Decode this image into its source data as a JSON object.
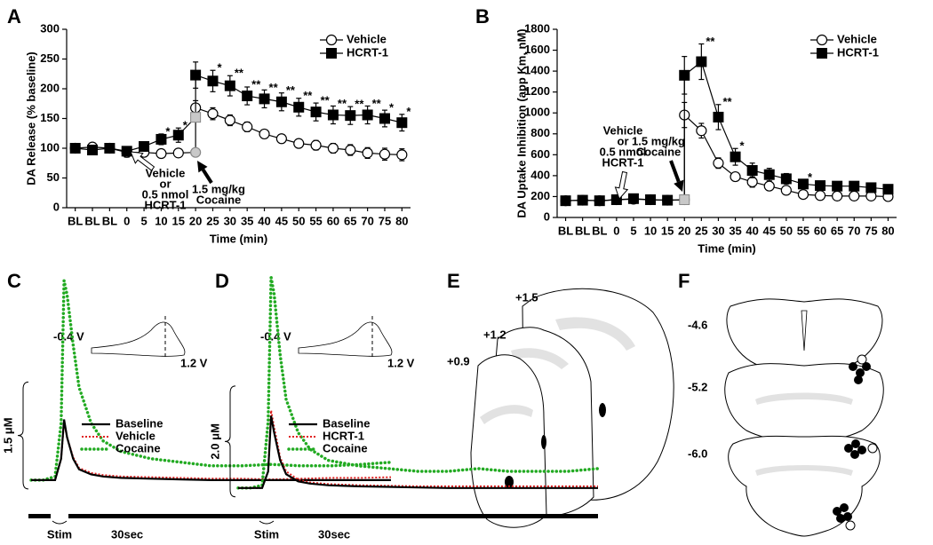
{
  "chart_data": [
    {
      "type": "line",
      "label": "A",
      "xlabel": "Time (min)",
      "ylabel": "DA Release (% baseline)",
      "categories": [
        "BL",
        "BL",
        "BL",
        "0",
        "5",
        "10",
        "15",
        "20",
        null,
        "25",
        "30",
        "35",
        "40",
        "45",
        "50",
        "55",
        "60",
        "65",
        "70",
        "75",
        "80"
      ],
      "ylim": [
        0,
        300
      ],
      "yticks": [
        0,
        50,
        100,
        150,
        200,
        250,
        300
      ],
      "series": [
        {
          "name": "Vehicle",
          "marker": "circle",
          "color": "#000000",
          "values": [
            100,
            102,
            100,
            93,
            93,
            91,
            92,
            93,
            168,
            158,
            147,
            136,
            124,
            116,
            108,
            105,
            100,
            97,
            92,
            90,
            89
          ],
          "errors": [
            3,
            3,
            3,
            8,
            6,
            6,
            6,
            4,
            12,
            10,
            9,
            8,
            7,
            7,
            7,
            8,
            8,
            9,
            9,
            10,
            10
          ]
        },
        {
          "name": "HCRT-1",
          "marker": "square",
          "color": "#000000",
          "values": [
            100,
            97,
            100,
            95,
            103,
            115,
            122,
            152,
            223,
            213,
            205,
            188,
            183,
            178,
            169,
            161,
            156,
            155,
            156,
            150,
            143
          ],
          "errors": [
            3,
            3,
            3,
            7,
            8,
            9,
            12,
            5,
            22,
            18,
            17,
            15,
            15,
            15,
            15,
            15,
            15,
            15,
            15,
            14,
            14
          ],
          "significance": [
            null,
            null,
            null,
            null,
            null,
            "*",
            "*",
            null,
            null,
            "*",
            "**",
            "**",
            "**",
            "**",
            "**",
            "**",
            "**",
            "**",
            "**",
            "*",
            "*"
          ]
        }
      ],
      "annotations": [
        {
          "lines": [
            "Vehicle",
            "or",
            "0.5 nmol",
            "HCRT-1"
          ]
        },
        {
          "lines": [
            "1.5 mg/kg",
            "Cocaine"
          ]
        }
      ]
    },
    {
      "type": "line",
      "label": "B",
      "xlabel": "Time (min)",
      "ylabel": "DA Uptake Inhibition (app Km, nM)",
      "categories": [
        "BL",
        "BL",
        "BL",
        "0",
        "5",
        "10",
        "15",
        "20",
        null,
        "25",
        "30",
        "35",
        "40",
        "45",
        "50",
        "55",
        "60",
        "65",
        "70",
        "75",
        "80"
      ],
      "ylim": [
        0,
        1800
      ],
      "yticks": [
        0,
        200,
        400,
        600,
        800,
        1000,
        1200,
        1400,
        1600,
        1800
      ],
      "series": [
        {
          "name": "Vehicle",
          "marker": "circle",
          "color": "#000000",
          "values": [
            160,
            165,
            160,
            170,
            175,
            170,
            165,
            170,
            980,
            830,
            520,
            390,
            340,
            300,
            260,
            220,
            210,
            205,
            205,
            205,
            200
          ],
          "errors": [
            20,
            20,
            20,
            20,
            20,
            20,
            20,
            10,
            120,
            70,
            50,
            40,
            50,
            40,
            40,
            30,
            30,
            30,
            30,
            30,
            30
          ]
        },
        {
          "name": "HCRT-1",
          "marker": "square",
          "color": "#000000",
          "values": [
            160,
            165,
            160,
            170,
            180,
            170,
            165,
            170,
            1360,
            1490,
            960,
            580,
            450,
            410,
            370,
            320,
            305,
            300,
            300,
            285,
            270
          ],
          "errors": [
            20,
            20,
            20,
            20,
            20,
            20,
            20,
            10,
            180,
            170,
            120,
            80,
            70,
            60,
            50,
            40,
            40,
            40,
            40,
            40,
            40
          ],
          "significance": [
            null,
            null,
            null,
            null,
            null,
            null,
            null,
            null,
            null,
            "**",
            "**",
            "*",
            null,
            null,
            null,
            "*",
            null,
            null,
            null,
            null,
            null
          ]
        }
      ],
      "annotations": [
        {
          "lines": [
            "Vehicle",
            "or",
            "0.5 nmol",
            "HCRT-1"
          ]
        },
        {
          "lines": [
            "1.5 mg/kg",
            "Cocaine"
          ]
        }
      ]
    },
    {
      "type": "trace",
      "label": "C",
      "stim_label": "Stim",
      "time_label": "30sec",
      "scale_bar": {
        "value": 1.5,
        "label": "1.5 μM"
      },
      "inset_labels": [
        "-0.4 V",
        "1.2 V"
      ],
      "xlim": [
        0,
        60
      ],
      "ylim": [
        -0.5,
        3.0
      ],
      "x": [
        0,
        2,
        4,
        5,
        5.5,
        6,
        7,
        8,
        10,
        12,
        15,
        20,
        25,
        30,
        35,
        40,
        45,
        50,
        55,
        60
      ],
      "series": [
        {
          "name": "Baseline",
          "color": "#000000",
          "style": "solid",
          "values": [
            0,
            0,
            0,
            0.3,
            0.85,
            0.6,
            0.3,
            0.15,
            0.08,
            0.05,
            0.03,
            0.02,
            0.01,
            0,
            0,
            0,
            0,
            0,
            0,
            0
          ]
        },
        {
          "name": "Vehicle",
          "color": "#e02020",
          "style": "dotted",
          "values": [
            0,
            0,
            0,
            0.3,
            0.82,
            0.6,
            0.32,
            0.17,
            0.1,
            0.07,
            0.05,
            0.04,
            0.03,
            0.02,
            0.02,
            0.01,
            0.02,
            0.03,
            0.03,
            0.04
          ]
        },
        {
          "name": "Cocaine",
          "color": "#22aa22",
          "style": "circles",
          "values": [
            0,
            0,
            0.05,
            0.8,
            2.8,
            2.6,
            1.9,
            1.3,
            0.8,
            0.55,
            0.4,
            0.3,
            0.25,
            0.2,
            0.2,
            0.22,
            0.2,
            0.2,
            0.22,
            0.25
          ]
        }
      ]
    },
    {
      "type": "trace",
      "label": "D",
      "stim_label": "Stim",
      "time_label": "30sec",
      "scale_bar": {
        "value": 2.0,
        "label": "2.0 μM"
      },
      "inset_labels": [
        "-0.4 V",
        "1.2 V"
      ],
      "xlim": [
        0,
        60
      ],
      "ylim": [
        -0.5,
        4.0
      ],
      "x": [
        0,
        2,
        4,
        5,
        5.5,
        6,
        7,
        8,
        10,
        12,
        15,
        20,
        25,
        30,
        35,
        40,
        45,
        50,
        55,
        60
      ],
      "series": [
        {
          "name": "Baseline",
          "color": "#000000",
          "style": "solid",
          "values": [
            0,
            0,
            0,
            0.3,
            1.3,
            1.0,
            0.5,
            0.25,
            0.12,
            0.08,
            0.05,
            0.03,
            0.02,
            0.01,
            0,
            0,
            0,
            0,
            0,
            0
          ]
        },
        {
          "name": "HCRT-1",
          "color": "#e02020",
          "style": "dotted",
          "values": [
            0,
            0,
            0,
            0.3,
            1.4,
            1.1,
            0.55,
            0.3,
            0.15,
            0.1,
            0.07,
            0.05,
            0.04,
            0.03,
            0.03,
            0.03,
            0.03,
            0.03,
            0.03,
            0.03
          ]
        },
        {
          "name": "Cocaine",
          "color": "#22aa22",
          "style": "circles",
          "values": [
            0,
            0,
            0.05,
            1.2,
            3.8,
            3.5,
            2.4,
            1.6,
            1.0,
            0.7,
            0.5,
            0.4,
            0.35,
            0.3,
            0.3,
            0.35,
            0.3,
            0.3,
            0.3,
            0.35
          ]
        }
      ]
    }
  ],
  "diagrams": {
    "E": {
      "label": "E",
      "sections": [
        "+1.5",
        "+1.2",
        "+0.9"
      ]
    },
    "F": {
      "label": "F",
      "sections": [
        "-4.6",
        "-5.2",
        "-6.0"
      ]
    }
  }
}
